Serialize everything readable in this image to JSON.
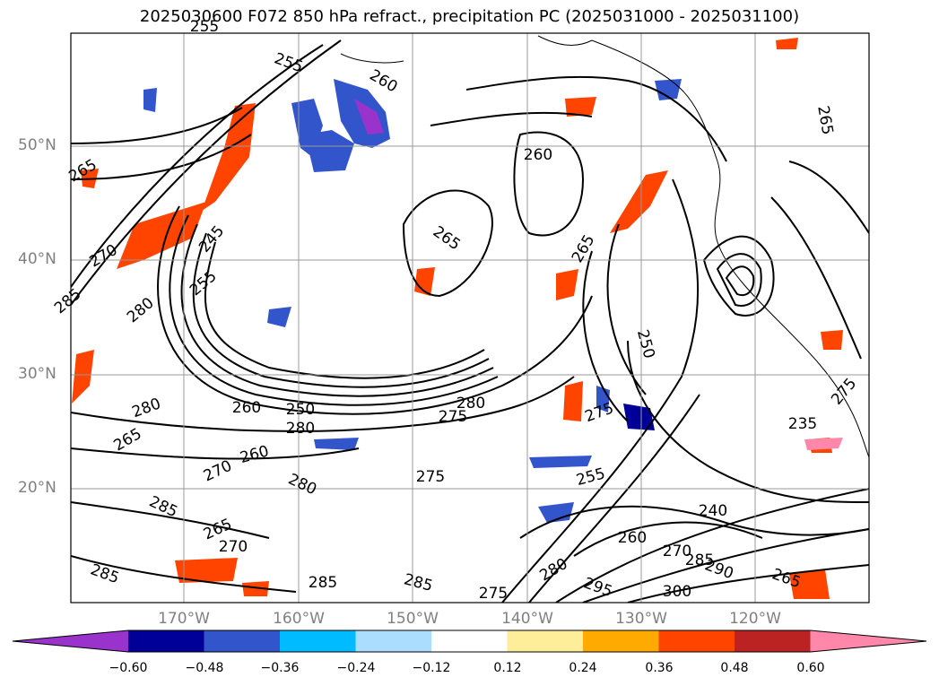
{
  "title": "2025030600 F072 850 hPa refract., precipitation PC (2025031000 - 2025031100)",
  "lat_labels": [
    "50°N",
    "40°N",
    "30°N",
    "20°N"
  ],
  "lon_labels": [
    "170°W",
    "160°W",
    "150°W",
    "140°W",
    "130°W",
    "120°W"
  ],
  "contour_labels": [
    "255",
    "260",
    "265",
    "270",
    "255",
    "260",
    "265",
    "265",
    "255",
    "245",
    "280",
    "285",
    "265",
    "280",
    "250",
    "280",
    "275",
    "280",
    "260",
    "265",
    "270",
    "260",
    "280",
    "275",
    "255",
    "250",
    "275",
    "285",
    "290",
    "285",
    "265",
    "300",
    "295",
    "285",
    "270",
    "265",
    "275",
    "280",
    "285",
    "285",
    "275",
    "270",
    "240",
    "235",
    "260"
  ],
  "colorbar": {
    "ticks": [
      "−0.60",
      "−0.48",
      "−0.36",
      "−0.24",
      "−0.12",
      "0.12",
      "0.24",
      "0.36",
      "0.48",
      "0.60"
    ],
    "colors": [
      "#9933cc",
      "#000099",
      "#3355cc",
      "#00bbff",
      "#aaddff",
      "#ffffff",
      "#ffee99",
      "#ffaa00",
      "#ff4400",
      "#bb2222",
      "#ff88aa"
    ]
  }
}
